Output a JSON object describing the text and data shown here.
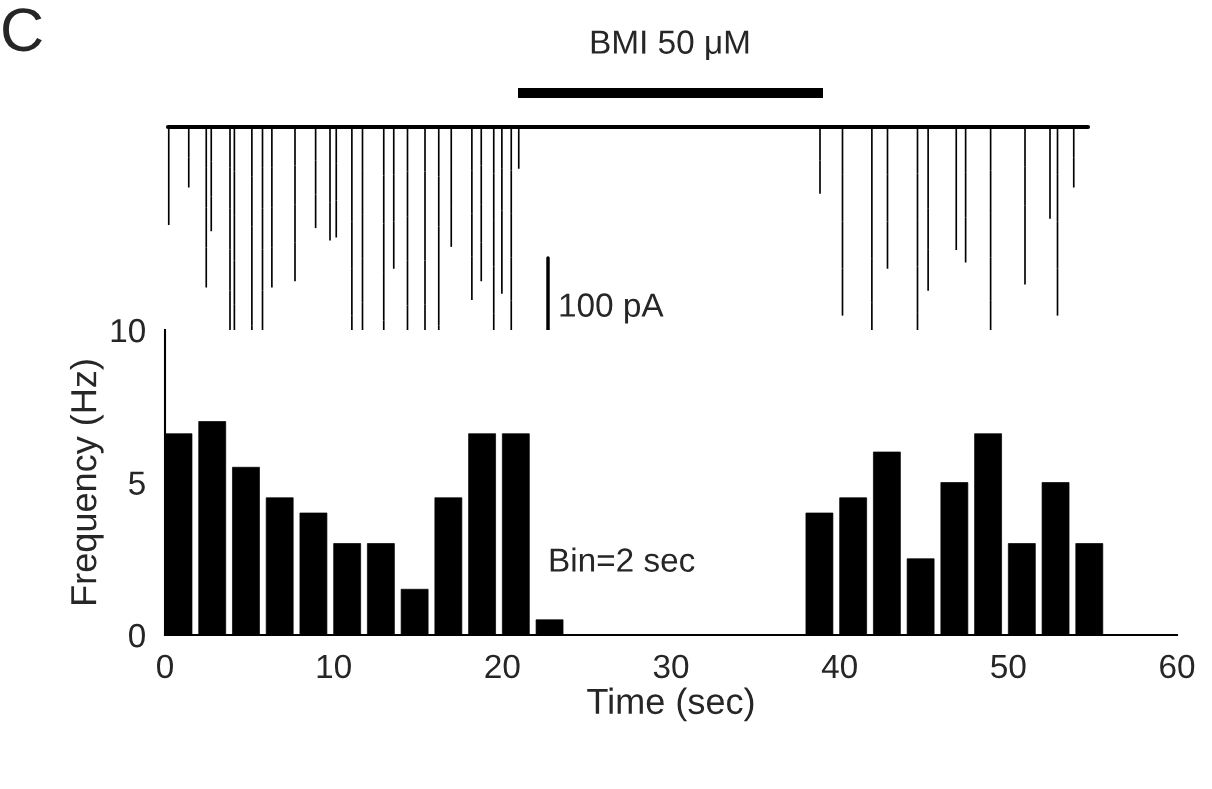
{
  "chart_data": {
    "type": "histogram",
    "xlabel": "Time (sec)",
    "ylabel": "Frequency (Hz)",
    "bins": [
      0,
      2,
      4,
      6,
      8,
      10,
      12,
      14,
      16,
      18,
      20,
      22,
      24,
      26,
      28,
      30,
      32,
      34,
      36,
      38,
      40,
      42,
      44,
      46,
      48,
      50,
      52,
      54,
      56
    ],
    "values": [
      6.6,
      7,
      5.5,
      4.5,
      4,
      3,
      3,
      1.5,
      4.5,
      6.6,
      6.6,
      0.5,
      0,
      0,
      0,
      0,
      0,
      0,
      0,
      4,
      4.5,
      6,
      2.5,
      5,
      6.6,
      3,
      5,
      3
    ],
    "color": "#000000",
    "xlim": [
      0,
      60
    ],
    "xticks": [
      0,
      10,
      20,
      30,
      40,
      50,
      60
    ],
    "ylim": [
      0,
      10
    ],
    "yticks": [
      0,
      5,
      10
    ],
    "annotations": [
      "C",
      "100 pA",
      "Bin=2 sec",
      "BMI 50 μM"
    ],
    "grid": false,
    "legend": false
  }
}
